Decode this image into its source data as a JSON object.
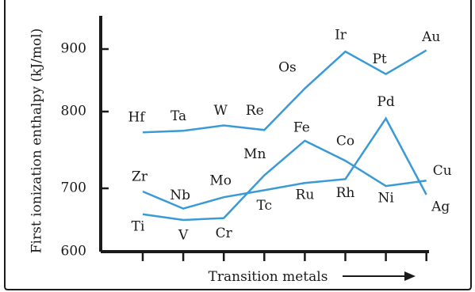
{
  "chart_data": {
    "type": "line",
    "title": "",
    "xlabel": "Transition metals",
    "ylabel": "First ionization enthalpy (kJ/mol)",
    "yticks": [
      600,
      700,
      800,
      900
    ],
    "ylim": [
      600,
      950
    ],
    "x_positions": [
      1,
      2,
      3,
      4,
      5,
      6,
      7,
      8
    ],
    "series": [
      {
        "elements": [
          "Ti",
          "V",
          "Cr",
          "Mn",
          "Fe",
          "Co",
          "Ni",
          "Cu"
        ],
        "values": [
          659,
          650,
          653,
          717,
          762,
          736,
          703,
          710
        ]
      },
      {
        "elements": [
          "Zr",
          "Nb",
          "Mo",
          "Tc",
          "Ru",
          "Rh",
          "Pd",
          "Ag"
        ],
        "values": [
          695,
          668,
          686,
          697,
          707,
          712,
          791,
          690
        ]
      },
      {
        "elements": [
          "Hf",
          "Ta",
          "W",
          "Re",
          "Os",
          "Ir",
          "Pt",
          "Au"
        ],
        "values": [
          773,
          775,
          782,
          776,
          837,
          896,
          860,
          898
        ]
      }
    ],
    "line_color": "#3a9ad6",
    "grid": false
  }
}
